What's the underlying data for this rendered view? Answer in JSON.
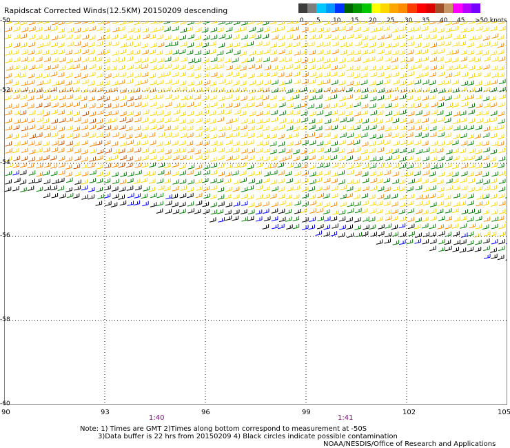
{
  "title": "Rapidscat Corrected Winds(12.5KM) 20150209 descending",
  "legend": {
    "colors": [
      "#3c3c3c",
      "#7d7d7d",
      "#00c8ff",
      "#0096ff",
      "#0032ff",
      "#006400",
      "#009600",
      "#00c800",
      "#ffff00",
      "#ffd700",
      "#ffa500",
      "#ff8c00",
      "#ff3c00",
      "#ff0000",
      "#dc0000",
      "#a05028",
      "#c89664",
      "#ff00ff",
      "#b400ff",
      "#7800ff"
    ],
    "ticks": [
      "0",
      "5",
      "10",
      "15",
      "20",
      "25",
      "30",
      "35",
      "40",
      "45",
      ">50 knots"
    ]
  },
  "map": {
    "lat_labels": [
      "-50",
      "-52",
      "-54",
      "-56",
      "-58",
      "-60"
    ],
    "lon_labels": [
      "90",
      "93",
      "96",
      "99",
      "102",
      "105"
    ],
    "time_labels": [
      "1:40",
      "1:41"
    ]
  },
  "notes": {
    "line1": "Note: 1) Times are GMT 2)Times along bottom correspond to measurement at -50S",
    "line2": "3)Data buffer is 22 hrs from 20150209 4) Black circles indicate possible contamination",
    "credit": "NOAA/NESDIS/Office of Research and Applications"
  },
  "wind_colors": {
    "calm": "#000000",
    "light": "#0000ff",
    "moderate": "#008000",
    "fresh": "#ffd700",
    "strong": "#ff8c00",
    "gale": "#cd5500"
  }
}
